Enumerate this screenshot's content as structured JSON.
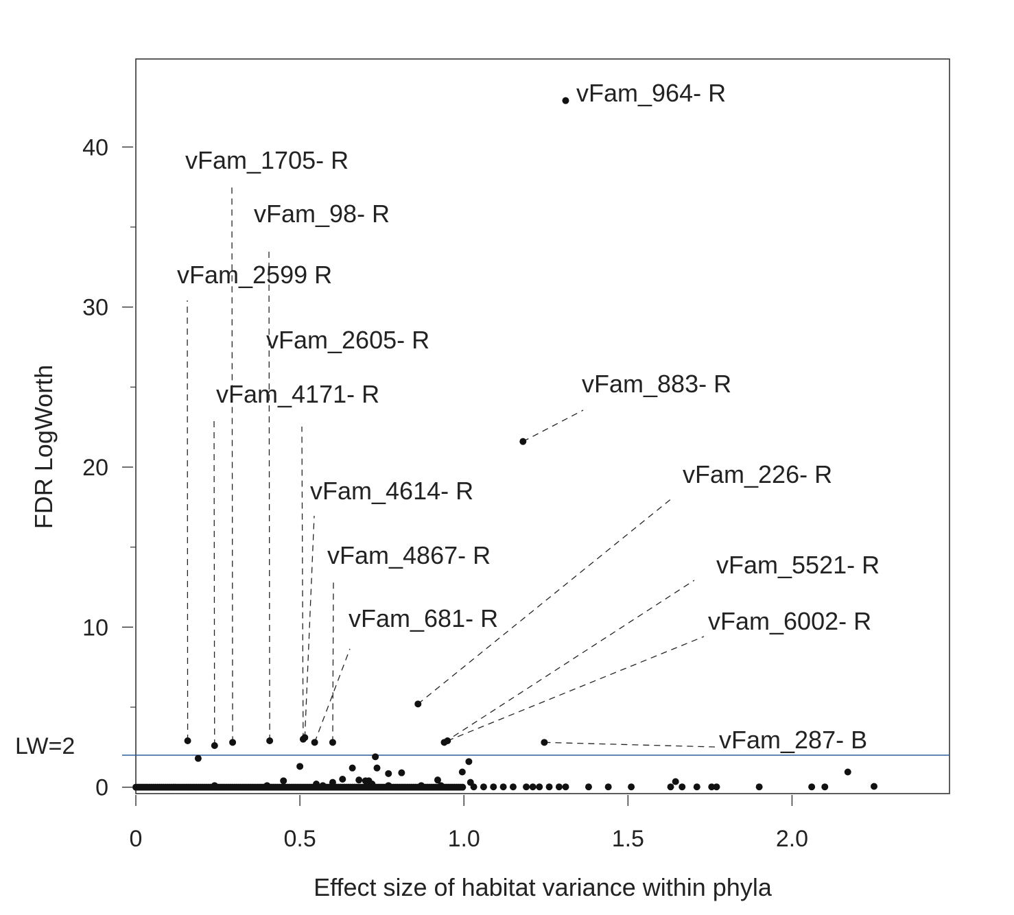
{
  "chart_data": {
    "type": "scatter",
    "xlabel": "Effect size of habitat variance within phyla",
    "ylabel": "FDR LogWorth",
    "xlim": [
      0,
      2.48
    ],
    "ylim": [
      -0.4,
      45.5
    ],
    "x_ticks": [
      {
        "value": 0,
        "label": "0"
      },
      {
        "value": 0.5,
        "label": "0.5"
      },
      {
        "value": 1.0,
        "label": "1.0"
      },
      {
        "value": 1.5,
        "label": "1.5"
      },
      {
        "value": 2.0,
        "label": "2.0"
      }
    ],
    "y_ticks": [
      {
        "value": 0,
        "label": "0"
      },
      {
        "value": 10,
        "label": "10"
      },
      {
        "value": 20,
        "label": "20"
      },
      {
        "value": 30,
        "label": "30"
      },
      {
        "value": 40,
        "label": "40"
      }
    ],
    "y_minor_ticks": [
      5,
      15,
      25,
      35
    ],
    "threshold": {
      "value": 2,
      "label": "LW=2",
      "color": "#2e5c9a"
    },
    "point_color": "#111111",
    "labeled_points": [
      {
        "label": "vFam_964- R",
        "x": 1.31,
        "y": 42.9
      },
      {
        "label": "vFam_1705- R",
        "x": 0.295,
        "y": 2.8
      },
      {
        "label": "vFam_98- R",
        "x": 0.408,
        "y": 2.9
      },
      {
        "label": "vFam_2599 R",
        "x": 0.158,
        "y": 2.9
      },
      {
        "label": "vFam_2605- R",
        "x": 0.51,
        "y": 3.0
      },
      {
        "label": "vFam_4171- R",
        "x": 0.24,
        "y": 2.6
      },
      {
        "label": "vFam_883- R",
        "x": 1.18,
        "y": 21.6
      },
      {
        "label": "vFam_226- R",
        "x": 0.86,
        "y": 5.2
      },
      {
        "label": "vFam_4614- R",
        "x": 0.515,
        "y": 3.1
      },
      {
        "label": "vFam_4867- R",
        "x": 0.6,
        "y": 2.8
      },
      {
        "label": "vFam_5521- R",
        "x": 0.94,
        "y": 2.8
      },
      {
        "label": "vFam_681- R",
        "x": 0.545,
        "y": 2.8
      },
      {
        "label": "vFam_6002- R",
        "x": 0.95,
        "y": 2.9
      },
      {
        "label": "vFam_287- B",
        "x": 1.245,
        "y": 2.8
      }
    ],
    "other_points": [
      [
        0.19,
        1.8
      ],
      [
        0.5,
        1.3
      ],
      [
        0.45,
        0.4
      ],
      [
        0.55,
        0.2
      ],
      [
        0.6,
        0.3
      ],
      [
        0.63,
        0.5
      ],
      [
        0.66,
        1.2
      ],
      [
        0.68,
        0.45
      ],
      [
        0.7,
        0.4
      ],
      [
        0.71,
        0.4
      ],
      [
        0.72,
        0.2
      ],
      [
        0.73,
        1.9
      ],
      [
        0.735,
        1.2
      ],
      [
        0.77,
        0.85
      ],
      [
        0.81,
        0.9
      ],
      [
        0.87,
        0.1
      ],
      [
        0.92,
        0.45
      ],
      [
        0.995,
        0.95
      ],
      [
        1.015,
        1.6
      ],
      [
        1.02,
        0.3
      ],
      [
        1.645,
        0.35
      ],
      [
        2.17,
        0.95
      ],
      [
        2.25,
        0.05
      ],
      [
        0.24,
        0.1
      ],
      [
        0.4,
        0.1
      ],
      [
        0.57,
        0.1
      ],
      [
        0.77,
        0.1
      ],
      [
        0.93,
        0.1
      ],
      [
        1.03,
        0.02
      ],
      [
        1.06,
        0.02
      ],
      [
        1.09,
        0.02
      ],
      [
        1.12,
        0.02
      ],
      [
        1.15,
        0.02
      ],
      [
        1.19,
        0.02
      ],
      [
        1.21,
        0.02
      ],
      [
        1.23,
        0.02
      ],
      [
        1.26,
        0.02
      ],
      [
        1.29,
        0.02
      ],
      [
        1.31,
        0.02
      ],
      [
        1.38,
        0.02
      ],
      [
        1.44,
        0.02
      ],
      [
        1.51,
        0.02
      ],
      [
        1.63,
        0.02
      ],
      [
        1.665,
        0.02
      ],
      [
        1.71,
        0.02
      ],
      [
        1.755,
        0.02
      ],
      [
        1.77,
        0.02
      ],
      [
        1.9,
        0.02
      ],
      [
        2.06,
        0.02
      ],
      [
        2.1,
        0.02
      ]
    ]
  }
}
